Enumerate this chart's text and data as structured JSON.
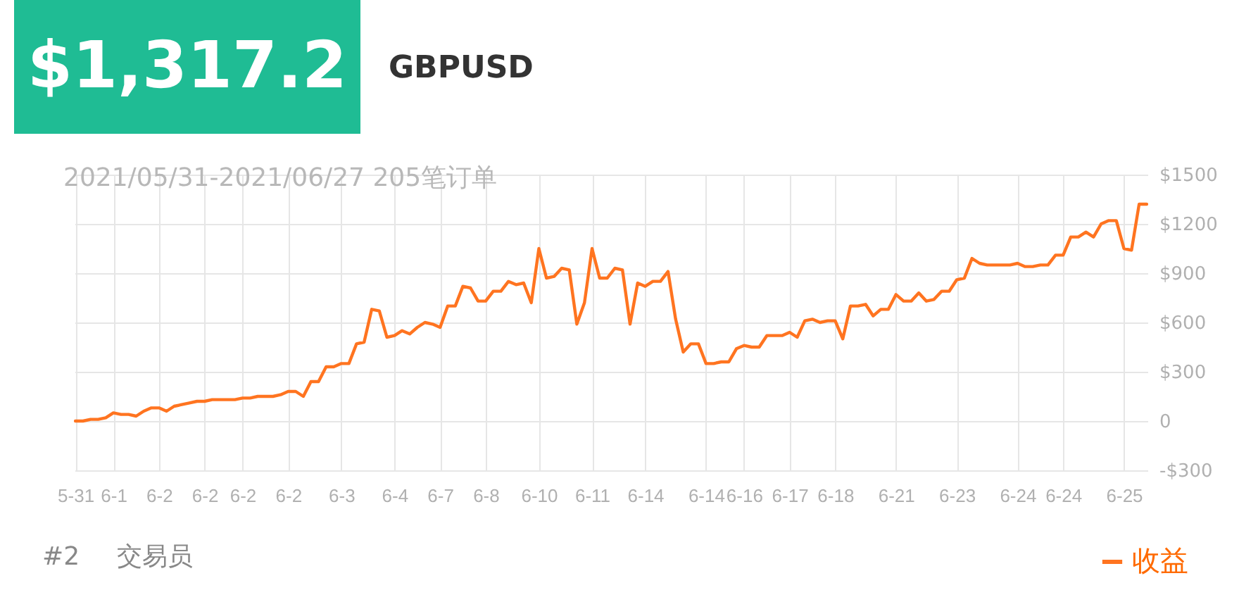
{
  "chart_data": {
    "type": "line",
    "title": "$1,317.2",
    "subtitle": "GBPUSD",
    "annotations": [
      "2021/05/31-2021/06/27 205笔订单",
      "#2",
      "交易员"
    ],
    "categories": [
      "5-31",
      null,
      null,
      null,
      null,
      "6-1",
      null,
      null,
      null,
      null,
      null,
      "6-2",
      null,
      null,
      null,
      null,
      null,
      "6-2",
      null,
      null,
      null,
      null,
      "6-2",
      null,
      null,
      null,
      null,
      null,
      "6-2",
      null,
      null,
      null,
      null,
      null,
      null,
      "6-3",
      null,
      null,
      null,
      null,
      null,
      null,
      "6-4",
      null,
      null,
      null,
      null,
      null,
      "6-7",
      null,
      null,
      null,
      null,
      null,
      "6-8",
      null,
      null,
      null,
      null,
      null,
      null,
      "6-10",
      null,
      null,
      null,
      null,
      null,
      null,
      "6-11",
      null,
      null,
      null,
      null,
      null,
      null,
      "6-14",
      null,
      null,
      null,
      null,
      null,
      null,
      null,
      "6-14",
      null,
      null,
      null,
      null,
      "6-16",
      null,
      null,
      null,
      null,
      null,
      "6-17",
      null,
      null,
      null,
      null,
      null,
      "6-18",
      null,
      null,
      null,
      null,
      null,
      null,
      null,
      "6-21",
      null,
      null,
      null,
      null,
      null,
      null,
      null,
      "6-23",
      null,
      null,
      null,
      null,
      null,
      null,
      null,
      "6-24",
      null,
      null,
      null,
      null,
      null,
      "6-24",
      null,
      null,
      null,
      null,
      null,
      null,
      null,
      "6-25",
      null,
      null,
      null
    ],
    "ylim": [
      -300,
      1500
    ],
    "yticks": [
      {
        "value": -300,
        "label": "-$300"
      },
      0,
      {
        "value": 300,
        "label": "$300"
      },
      {
        "value": 600,
        "label": "$600"
      },
      {
        "value": 900,
        "label": "$900"
      },
      {
        "value": 1200,
        "label": "$1200"
      },
      {
        "value": 1500,
        "label": "$1500"
      }
    ],
    "grid": true,
    "legend": "bottom right",
    "marker": "none",
    "line_style": "solid",
    "series": [
      {
        "name": "收益",
        "color": "#ff7420",
        "values": [
          0,
          0,
          10,
          10,
          20,
          50,
          40,
          40,
          30,
          60,
          80,
          80,
          60,
          90,
          100,
          110,
          120,
          120,
          130,
          130,
          130,
          130,
          140,
          140,
          150,
          150,
          150,
          160,
          180,
          180,
          150,
          240,
          240,
          330,
          330,
          350,
          350,
          470,
          480,
          680,
          670,
          510,
          520,
          550,
          530,
          570,
          600,
          590,
          570,
          700,
          700,
          820,
          810,
          730,
          730,
          790,
          790,
          850,
          830,
          840,
          720,
          1050,
          870,
          880,
          930,
          920,
          590,
          720,
          1050,
          870,
          870,
          930,
          920,
          590,
          840,
          820,
          850,
          850,
          910,
          620,
          420,
          470,
          470,
          350,
          350,
          360,
          360,
          440,
          460,
          450,
          450,
          520,
          520,
          520,
          540,
          510,
          610,
          620,
          600,
          610,
          610,
          500,
          700,
          700,
          710,
          640,
          680,
          680,
          770,
          730,
          730,
          780,
          730,
          740,
          790,
          790,
          860,
          870,
          990,
          960,
          950,
          950,
          950,
          950,
          960,
          940,
          940,
          950,
          950,
          1010,
          1010,
          1120,
          1120,
          1150,
          1120,
          1200,
          1220,
          1220,
          1050,
          1040,
          1320,
          1320
        ]
      }
    ]
  }
}
